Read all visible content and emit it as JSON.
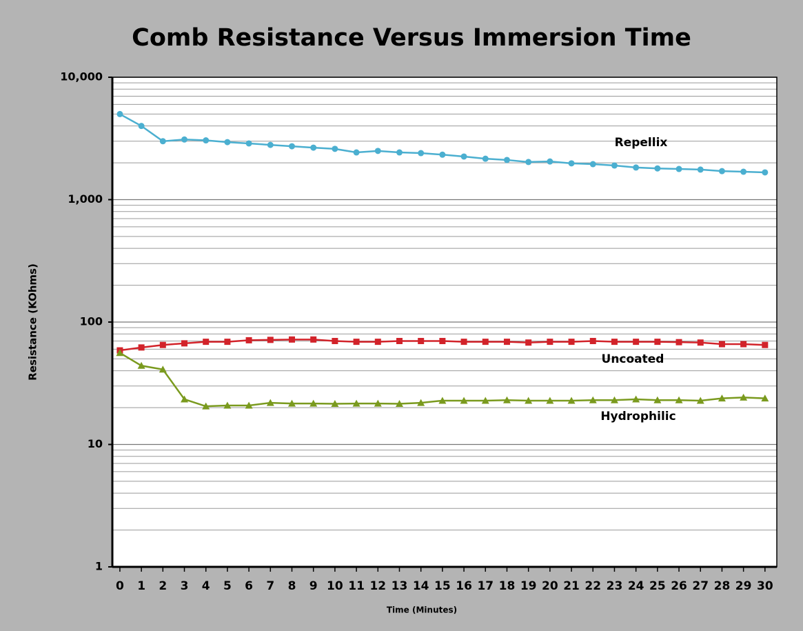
{
  "chart_data": {
    "type": "line",
    "title": "Comb Resistance Versus Immersion Time",
    "xlabel": "Time (Minutes)",
    "ylabel": "Resistance (KOhms)",
    "x": [
      0,
      1,
      2,
      3,
      4,
      5,
      6,
      7,
      8,
      9,
      10,
      11,
      12,
      13,
      14,
      15,
      16,
      17,
      18,
      19,
      20,
      21,
      22,
      23,
      24,
      25,
      26,
      27,
      28,
      29,
      30
    ],
    "xlim": [
      -0.35,
      30.55
    ],
    "xticks": [
      0,
      1,
      2,
      3,
      4,
      5,
      6,
      7,
      8,
      9,
      10,
      11,
      12,
      13,
      14,
      15,
      16,
      17,
      18,
      19,
      20,
      21,
      22,
      23,
      24,
      25,
      26,
      27,
      28,
      29,
      30
    ],
    "ylim": [
      1,
      10000
    ],
    "ylog": true,
    "yticks": [
      1,
      10,
      100,
      {
        "value": 1000,
        "label": "1,000"
      },
      {
        "value": 10000,
        "label": "10,000"
      }
    ],
    "yminorticks": [
      2,
      3,
      4,
      5,
      6,
      7,
      8,
      9,
      20,
      30,
      40,
      50,
      60,
      70,
      80,
      90,
      200,
      300,
      400,
      500,
      600,
      700,
      800,
      900,
      2000,
      3000,
      4000,
      5000,
      6000,
      7000,
      8000,
      9000
    ],
    "grid": true,
    "series": [
      {
        "name": "Repellix",
        "color": "#4bafd0",
        "marker": "circle",
        "values": [
          5000,
          4000,
          3000,
          3100,
          3050,
          2950,
          2880,
          2800,
          2730,
          2660,
          2600,
          2430,
          2500,
          2430,
          2400,
          2330,
          2250,
          2160,
          2110,
          2030,
          2050,
          1980,
          1950,
          1900,
          1830,
          1800,
          1780,
          1760,
          1710,
          1690,
          1670
        ]
      },
      {
        "name": "Uncoated",
        "color": "#d2232a",
        "marker": "square",
        "values": [
          58.7,
          62,
          65,
          67,
          69,
          69,
          71,
          71.5,
          72,
          72,
          70,
          69,
          69,
          70,
          70,
          70,
          69,
          69,
          69,
          68,
          69,
          69,
          70,
          69,
          69,
          69,
          68.5,
          68,
          66,
          66,
          65
        ]
      },
      {
        "name": "Hydrophilic",
        "color": "#7a9a1e",
        "marker": "triangle",
        "values": [
          56,
          44,
          41,
          23.4,
          20.5,
          20.8,
          20.8,
          21.9,
          21.6,
          21.6,
          21.5,
          21.6,
          21.6,
          21.5,
          21.9,
          22.8,
          22.8,
          22.8,
          23,
          22.8,
          22.8,
          22.8,
          23,
          23,
          23.4,
          23,
          23,
          22.8,
          23.8,
          24.2,
          23.8
        ]
      }
    ]
  }
}
